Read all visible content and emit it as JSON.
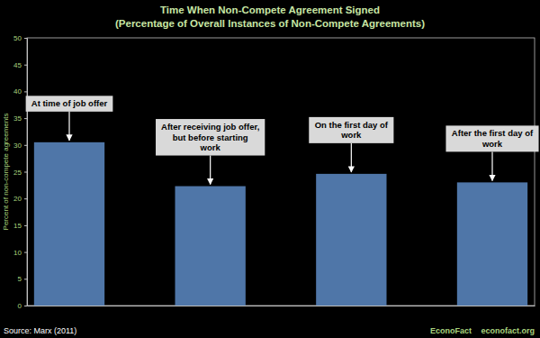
{
  "chart_data": {
    "type": "bar",
    "title": "Time When Non-Compete Agreement Signed",
    "subtitle": "(Percentage of Overall Instances of Non-Compete Agreements)",
    "y_label": "Percent of non-compete agreements",
    "categories": [
      null,
      null,
      null,
      null
    ],
    "values": [
      30.5,
      22.3,
      24.6,
      23.0
    ],
    "annotations": [
      [
        "At time of job offer"
      ],
      [
        "After receiving job offer,",
        "but before starting",
        "work"
      ],
      [
        "On the first day of",
        "work"
      ],
      [
        "After the first day of",
        "work"
      ]
    ],
    "color": "#4f76a8",
    "ylim": [
      0,
      50
    ],
    "yticks": [
      0,
      5,
      10,
      15,
      20,
      25,
      30,
      35,
      40,
      45,
      50
    ],
    "grid": false,
    "tick_labels": "y",
    "source": "Source: Marx (2011)",
    "credits": [
      "EconoFact",
      "econofact.org"
    ]
  }
}
